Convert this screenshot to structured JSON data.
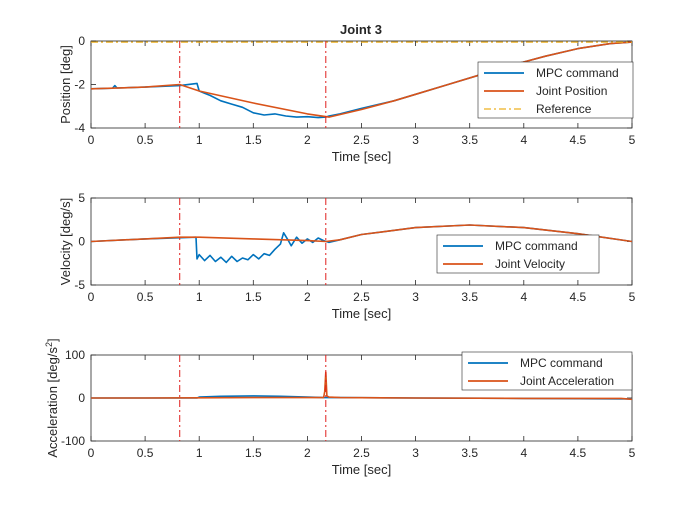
{
  "figure": {
    "title": "Joint 3"
  },
  "chart_data": [
    {
      "type": "line",
      "title": "Joint 3",
      "xlabel": "Time [sec]",
      "ylabel": "Position [deg]",
      "xlim": [
        0,
        5
      ],
      "ylim": [
        -4,
        0
      ],
      "xticks": [
        "0",
        "0.5",
        "1",
        "1.5",
        "2",
        "2.5",
        "3",
        "3.5",
        "4",
        "4.5",
        "5"
      ],
      "yticks": [
        "-4",
        "-2",
        "0"
      ],
      "legend_position": "right",
      "vlines": [
        0.82,
        2.17
      ],
      "series": [
        {
          "name": "MPC command",
          "color": "#0072BD",
          "x": [
            0,
            0.2,
            0.22,
            0.24,
            0.5,
            0.82,
            0.98,
            1.0,
            1.05,
            1.1,
            1.2,
            1.3,
            1.4,
            1.5,
            1.6,
            1.7,
            1.8,
            1.9,
            2.0,
            2.1,
            2.17,
            2.2,
            2.3,
            2.5,
            2.8,
            3.0,
            3.3,
            3.6,
            3.9,
            4.2,
            4.5,
            4.8,
            5.0
          ],
          "y": [
            -2.2,
            -2.17,
            -2.05,
            -2.16,
            -2.12,
            -2.05,
            -1.95,
            -2.3,
            -2.4,
            -2.5,
            -2.75,
            -2.9,
            -3.05,
            -3.3,
            -3.4,
            -3.35,
            -3.45,
            -3.5,
            -3.48,
            -3.52,
            -3.5,
            -3.45,
            -3.35,
            -3.1,
            -2.75,
            -2.45,
            -2.0,
            -1.55,
            -1.1,
            -0.7,
            -0.35,
            -0.12,
            -0.05
          ]
        },
        {
          "name": "Joint Position",
          "color": "#D95319",
          "x": [
            0,
            0.5,
            0.82,
            1.0,
            1.5,
            2.0,
            2.2,
            2.5,
            2.8,
            3.0,
            3.3,
            3.6,
            3.9,
            4.2,
            4.5,
            4.8,
            5.0
          ],
          "y": [
            -2.2,
            -2.12,
            -2.0,
            -2.3,
            -2.85,
            -3.35,
            -3.5,
            -3.15,
            -2.75,
            -2.45,
            -2.0,
            -1.55,
            -1.1,
            -0.7,
            -0.35,
            -0.12,
            -0.05
          ]
        },
        {
          "name": "Reference",
          "color": "#EDB120",
          "style": "dashdot",
          "x": [
            0,
            5
          ],
          "y": [
            -0.05,
            -0.05
          ]
        }
      ]
    },
    {
      "type": "line",
      "title": "",
      "xlabel": "Time [sec]",
      "ylabel": "Velocity [deg/s]",
      "xlim": [
        0,
        5
      ],
      "ylim": [
        -5,
        5
      ],
      "xticks": [
        "0",
        "0.5",
        "1",
        "1.5",
        "2",
        "2.5",
        "3",
        "3.5",
        "4",
        "4.5",
        "5"
      ],
      "yticks": [
        "-5",
        "0",
        "5"
      ],
      "legend_position": "right",
      "vlines": [
        0.82,
        2.17
      ],
      "series": [
        {
          "name": "MPC command",
          "color": "#0072BD",
          "x": [
            0,
            0.5,
            0.97,
            0.98,
            1.0,
            1.05,
            1.1,
            1.15,
            1.2,
            1.25,
            1.3,
            1.35,
            1.4,
            1.45,
            1.5,
            1.55,
            1.6,
            1.65,
            1.7,
            1.75,
            1.78,
            1.82,
            1.85,
            1.9,
            1.95,
            2.0,
            2.05,
            2.1,
            2.15,
            2.2,
            2.3,
            2.5,
            3.0,
            3.5,
            4.0,
            4.5,
            5.0
          ],
          "y": [
            0,
            0.3,
            0.5,
            -2.0,
            -1.5,
            -2.2,
            -1.6,
            -2.3,
            -1.8,
            -2.4,
            -1.7,
            -2.3,
            -1.9,
            -2.1,
            -1.5,
            -2.0,
            -1.4,
            -1.6,
            -0.9,
            -0.3,
            1.0,
            0.2,
            -0.5,
            0.5,
            -0.2,
            0.3,
            -0.1,
            0.4,
            0.1,
            -0.1,
            0.2,
            0.8,
            1.6,
            1.9,
            1.6,
            0.9,
            0.0
          ]
        },
        {
          "name": "Joint Velocity",
          "color": "#D95319",
          "x": [
            0,
            0.5,
            0.82,
            1.0,
            1.5,
            2.0,
            2.17,
            2.3,
            2.5,
            3.0,
            3.5,
            4.0,
            4.5,
            5.0
          ],
          "y": [
            0,
            0.3,
            0.5,
            0.5,
            0.3,
            0.1,
            0.0,
            0.2,
            0.8,
            1.6,
            1.9,
            1.6,
            0.9,
            0.0
          ]
        }
      ]
    },
    {
      "type": "line",
      "title": "",
      "xlabel": "Time [sec]",
      "ylabel": "Acceleration [deg/s",
      "ylabel_sup": "2",
      "ylabel_end": "]",
      "xlim": [
        0,
        5
      ],
      "ylim": [
        -100,
        100
      ],
      "xticks": [
        "0",
        "0.5",
        "1",
        "1.5",
        "2",
        "2.5",
        "3",
        "3.5",
        "4",
        "4.5",
        "5"
      ],
      "yticks": [
        "-100",
        "0",
        "100"
      ],
      "legend_position": "top-right",
      "vlines": [
        0.82,
        2.17
      ],
      "series": [
        {
          "name": "MPC command",
          "color": "#0072BD",
          "x": [
            0,
            0.98,
            1.0,
            1.2,
            1.5,
            1.75,
            2.0,
            2.15,
            2.3,
            3.0,
            4.0,
            5.0
          ],
          "y": [
            0,
            0,
            2,
            4,
            5,
            4,
            2,
            1,
            1,
            0,
            -1,
            -2
          ]
        },
        {
          "name": "Joint Acceleration",
          "color": "#D95319",
          "x": [
            0,
            0.5,
            1.0,
            1.5,
            2.0,
            2.15,
            2.16,
            2.17,
            2.18,
            2.2,
            2.3,
            3.0,
            4.0,
            4.9,
            5.0
          ],
          "y": [
            0,
            0,
            0.5,
            1,
            1,
            1,
            15,
            60,
            5,
            2,
            1,
            0,
            -1,
            -1,
            -3
          ]
        }
      ]
    }
  ]
}
